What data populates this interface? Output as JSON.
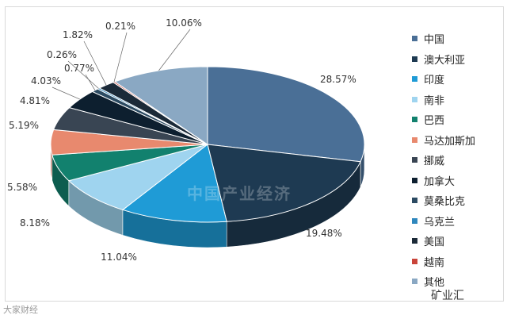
{
  "chart_data": {
    "type": "pie",
    "title": "",
    "categories": [
      "中国",
      "澳大利亚",
      "印度",
      "南非",
      "巴西",
      "马达加斯加",
      "挪威",
      "加拿大",
      "莫桑比克",
      "乌克兰",
      "美国",
      "越南",
      "其他"
    ],
    "values": [
      28.57,
      19.48,
      11.04,
      8.18,
      5.58,
      5.19,
      4.81,
      4.03,
      0.77,
      0.26,
      1.82,
      0.21,
      10.06
    ],
    "labels": [
      "28.57%",
      "19.48%",
      "11.04%",
      "8.18%",
      "5.58%",
      "5.19%",
      "4.81%",
      "4.03%",
      "0.77%",
      "0.26%",
      "1.82%",
      "0.21%",
      "10.06%"
    ],
    "colors": [
      "#4a6f96",
      "#1e3a52",
      "#1f9bd6",
      "#9fd4ef",
      "#12816e",
      "#e8896e",
      "#394553",
      "#0d1f2f",
      "#2c4b62",
      "#2f87bd",
      "#1b2a38",
      "#c9443a",
      "#8aa8c3"
    ],
    "legend_position": "right",
    "is_3d": true
  },
  "watermarks": {
    "center": "中国产业经济",
    "bottom_left": "大家财经",
    "bottom_right": "矿业汇"
  }
}
